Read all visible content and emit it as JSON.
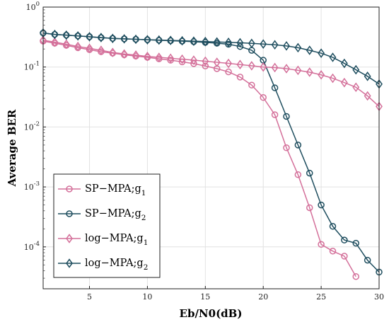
{
  "chart_data": {
    "type": "line",
    "xlabel": "Eb/N0(dB)",
    "ylabel": "Average BER",
    "xlim": [
      1,
      30
    ],
    "ylim": [
      2e-05,
      1
    ],
    "yscale": "log",
    "x_ticks": [
      5,
      10,
      15,
      20,
      25,
      30
    ],
    "y_ticks": [
      {
        "base": "10",
        "exp": "0",
        "value": 1
      },
      {
        "base": "10",
        "exp": "-1",
        "value": 0.1
      },
      {
        "base": "10",
        "exp": "-2",
        "value": 0.01
      },
      {
        "base": "10",
        "exp": "-3",
        "value": 0.001
      },
      {
        "base": "10",
        "exp": "-4",
        "value": 0.0001
      }
    ],
    "grid": true,
    "legend_position": "lower-left",
    "series": [
      {
        "name": "SP−MPA;g",
        "name_sub": "1",
        "color": "#d4709a",
        "marker": "circle",
        "x": [
          1,
          2,
          3,
          4,
          5,
          6,
          7,
          8,
          9,
          10,
          11,
          12,
          13,
          14,
          15,
          16,
          17,
          18,
          19,
          20,
          21,
          22,
          23,
          24,
          25,
          26,
          27,
          28
        ],
        "y": [
          0.27,
          0.25,
          0.23,
          0.21,
          0.195,
          0.18,
          0.17,
          0.16,
          0.152,
          0.145,
          0.137,
          0.13,
          0.122,
          0.114,
          0.104,
          0.094,
          0.083,
          0.068,
          0.05,
          0.031,
          0.016,
          0.0045,
          0.0016,
          0.00045,
          0.00011,
          8.5e-05,
          7e-05,
          3.2e-05
        ]
      },
      {
        "name": "SP−MPA;g",
        "name_sub": "2",
        "color": "#1f4e5f",
        "marker": "circle",
        "x": [
          1,
          2,
          3,
          4,
          5,
          6,
          7,
          8,
          9,
          10,
          11,
          12,
          13,
          14,
          15,
          16,
          17,
          18,
          19,
          20,
          21,
          22,
          23,
          24,
          25,
          26,
          27,
          28,
          29,
          30
        ],
        "y": [
          0.37,
          0.35,
          0.34,
          0.33,
          0.32,
          0.31,
          0.3,
          0.295,
          0.29,
          0.285,
          0.28,
          0.275,
          0.27,
          0.265,
          0.258,
          0.25,
          0.24,
          0.22,
          0.19,
          0.13,
          0.045,
          0.015,
          0.005,
          0.0017,
          0.0005,
          0.00022,
          0.00013,
          0.000115,
          6e-05,
          3.8e-05
        ]
      },
      {
        "name": "log−MPA;g",
        "name_sub": "1",
        "color": "#d4709a",
        "marker": "diamond",
        "x": [
          1,
          2,
          3,
          4,
          5,
          6,
          7,
          8,
          9,
          10,
          11,
          12,
          13,
          14,
          15,
          16,
          17,
          18,
          19,
          20,
          21,
          22,
          23,
          24,
          25,
          26,
          27,
          28,
          29,
          30
        ],
        "y": [
          0.28,
          0.26,
          0.24,
          0.22,
          0.205,
          0.19,
          0.175,
          0.165,
          0.158,
          0.15,
          0.145,
          0.14,
          0.135,
          0.13,
          0.125,
          0.12,
          0.115,
          0.11,
          0.105,
          0.1,
          0.098,
          0.094,
          0.088,
          0.082,
          0.074,
          0.065,
          0.055,
          0.046,
          0.033,
          0.022
        ]
      },
      {
        "name": "log−MPA;g",
        "name_sub": "2",
        "color": "#1f4e5f",
        "marker": "diamond",
        "x": [
          1,
          2,
          3,
          4,
          5,
          6,
          7,
          8,
          9,
          10,
          11,
          12,
          13,
          14,
          15,
          16,
          17,
          18,
          19,
          20,
          21,
          22,
          23,
          24,
          25,
          26,
          27,
          28,
          29,
          30
        ],
        "y": [
          0.37,
          0.35,
          0.34,
          0.33,
          0.32,
          0.31,
          0.3,
          0.295,
          0.29,
          0.285,
          0.282,
          0.278,
          0.274,
          0.27,
          0.266,
          0.262,
          0.258,
          0.254,
          0.248,
          0.242,
          0.235,
          0.225,
          0.21,
          0.19,
          0.17,
          0.145,
          0.115,
          0.09,
          0.07,
          0.052
        ]
      }
    ]
  }
}
